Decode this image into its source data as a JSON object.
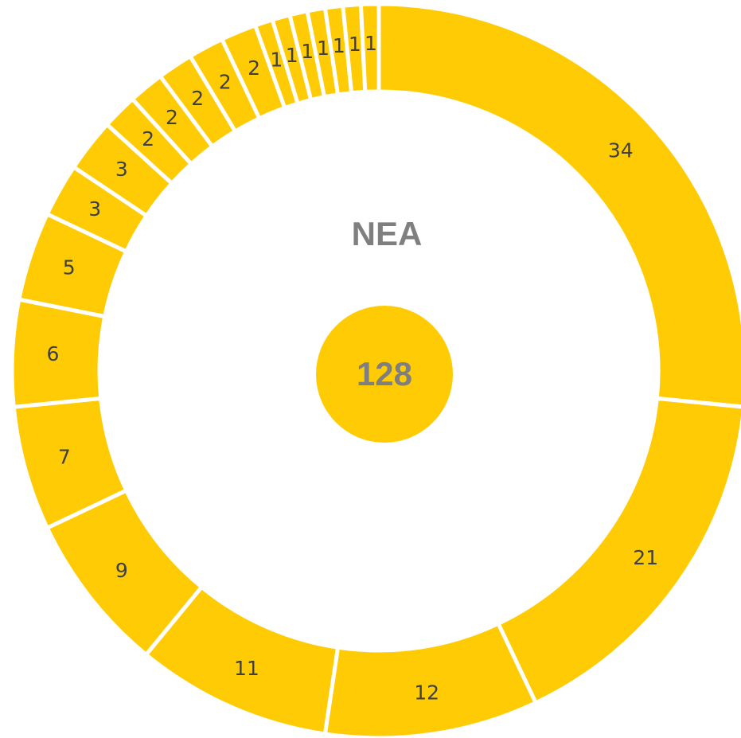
{
  "chart_data": {
    "type": "donut",
    "title": "NEA",
    "total": 128,
    "values": [
      34,
      21,
      12,
      11,
      9,
      7,
      6,
      5,
      3,
      3,
      2,
      2,
      2,
      2,
      2,
      1,
      1,
      1,
      1,
      1,
      1,
      1
    ],
    "color": "#ffcb05"
  }
}
